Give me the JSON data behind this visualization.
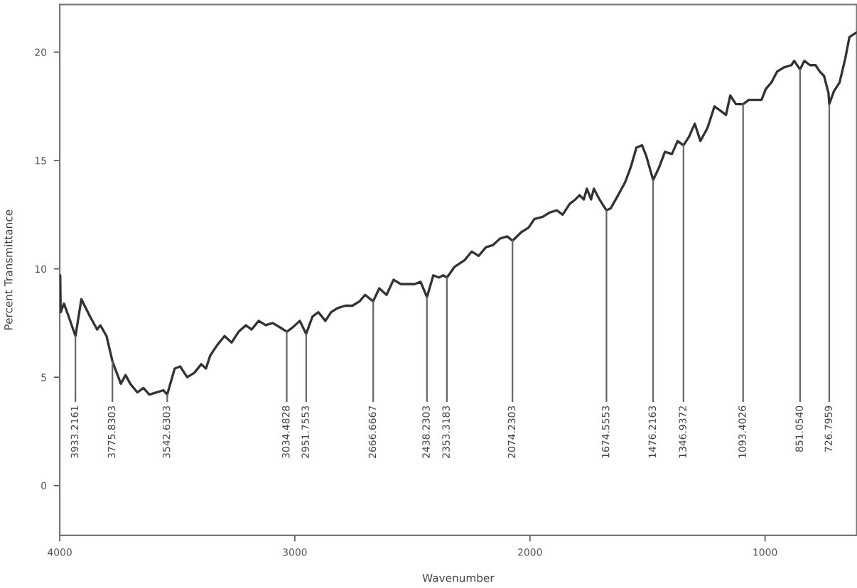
{
  "chart_data": {
    "type": "line",
    "xlabel": "Wavenumber",
    "ylabel": "Percent Transmittance",
    "series": [
      {
        "color": "#333333",
        "x": [
          3998,
          3996,
          3982,
          3962,
          3933,
          3908,
          3871,
          3841,
          3827,
          3801,
          3775,
          3740,
          3720,
          3700,
          3670,
          3644,
          3619,
          3589,
          3559,
          3543,
          3511,
          3488,
          3458,
          3428,
          3398,
          3378,
          3360,
          3329,
          3299,
          3269,
          3239,
          3208,
          3184,
          3154,
          3124,
          3094,
          3063,
          3034,
          3009,
          2979,
          2952,
          2925,
          2900,
          2870,
          2846,
          2816,
          2786,
          2755,
          2725,
          2701,
          2667,
          2641,
          2610,
          2580,
          2550,
          2520,
          2490,
          2465,
          2438,
          2411,
          2387,
          2369,
          2353,
          2320,
          2278,
          2248,
          2218,
          2187,
          2157,
          2127,
          2097,
          2074,
          2036,
          2006,
          1981,
          1946,
          1916,
          1885,
          1861,
          1831,
          1807,
          1789,
          1771,
          1758,
          1740,
          1728,
          1704,
          1675,
          1656,
          1625,
          1595,
          1571,
          1547,
          1523,
          1505,
          1476,
          1450,
          1426,
          1396,
          1372,
          1347,
          1323,
          1299,
          1275,
          1245,
          1215,
          1190,
          1166,
          1148,
          1124,
          1093,
          1069,
          1039,
          1015,
          997,
          973,
          949,
          919,
          888,
          876,
          851,
          833,
          809,
          785,
          767,
          749,
          730,
          727,
          707,
          683,
          659,
          641,
          612
        ],
        "values": [
          9.7,
          8.0,
          8.4,
          7.8,
          6.9,
          8.6,
          7.8,
          7.2,
          7.4,
          6.9,
          5.7,
          4.7,
          5.1,
          4.7,
          4.3,
          4.5,
          4.2,
          4.3,
          4.4,
          4.2,
          5.4,
          5.5,
          5.0,
          5.2,
          5.6,
          5.4,
          6.0,
          6.5,
          6.9,
          6.6,
          7.1,
          7.4,
          7.2,
          7.6,
          7.4,
          7.5,
          7.3,
          7.1,
          7.3,
          7.6,
          7.0,
          7.8,
          8.0,
          7.6,
          8.0,
          8.2,
          8.3,
          8.3,
          8.5,
          8.8,
          8.5,
          9.1,
          8.8,
          9.5,
          9.3,
          9.3,
          9.3,
          9.4,
          8.7,
          9.7,
          9.6,
          9.7,
          9.6,
          10.1,
          10.4,
          10.8,
          10.6,
          11.0,
          11.1,
          11.4,
          11.5,
          11.3,
          11.7,
          11.9,
          12.3,
          12.4,
          12.6,
          12.7,
          12.5,
          13.0,
          13.2,
          13.4,
          13.2,
          13.7,
          13.2,
          13.7,
          13.2,
          12.7,
          12.8,
          13.4,
          14.0,
          14.7,
          15.6,
          15.7,
          15.2,
          14.1,
          14.7,
          15.4,
          15.3,
          15.9,
          15.7,
          16.1,
          16.7,
          15.9,
          16.5,
          17.5,
          17.3,
          17.1,
          18.0,
          17.6,
          17.6,
          17.8,
          17.8,
          17.8,
          18.3,
          18.6,
          19.1,
          19.3,
          19.4,
          19.6,
          19.2,
          19.6,
          19.4,
          19.4,
          19.1,
          18.9,
          18.1,
          17.6,
          18.2,
          18.6,
          19.7,
          20.7,
          20.9
        ]
      }
    ],
    "xlim": [
      4000,
      610
    ],
    "xticks": [
      4000,
      3000,
      2000,
      1000
    ],
    "ylim": [
      -2.3,
      22.2
    ],
    "yticks": [
      0,
      5,
      10,
      15,
      20
    ],
    "grid": false,
    "annotations": [
      {
        "text": "3933.2161",
        "x": 3933.2161,
        "y": 6.9
      },
      {
        "text": "3775.8303",
        "x": 3775.8303,
        "y": 5.7
      },
      {
        "text": "3542.6303",
        "x": 3542.6303,
        "y": 4.2
      },
      {
        "text": "3034.4828",
        "x": 3034.4828,
        "y": 7.1
      },
      {
        "text": "2951.7553",
        "x": 2951.7553,
        "y": 7.0
      },
      {
        "text": "2666.6667",
        "x": 2666.6667,
        "y": 8.5
      },
      {
        "text": "2438.2303",
        "x": 2438.2303,
        "y": 8.7
      },
      {
        "text": "2353.3183",
        "x": 2353.3183,
        "y": 9.6
      },
      {
        "text": "2074.2303",
        "x": 2074.2303,
        "y": 11.3
      },
      {
        "text": "1674.5553",
        "x": 1674.5553,
        "y": 12.7
      },
      {
        "text": "1476.2163",
        "x": 1476.2163,
        "y": 14.1
      },
      {
        "text": "1346.9372",
        "x": 1346.9372,
        "y": 15.7
      },
      {
        "text": "1093.4026",
        "x": 1093.4026,
        "y": 17.6
      },
      {
        "text": "851.0540",
        "x": 851.054,
        "y": 19.2
      },
      {
        "text": "726.7959",
        "x": 726.7959,
        "y": 17.6
      }
    ]
  }
}
